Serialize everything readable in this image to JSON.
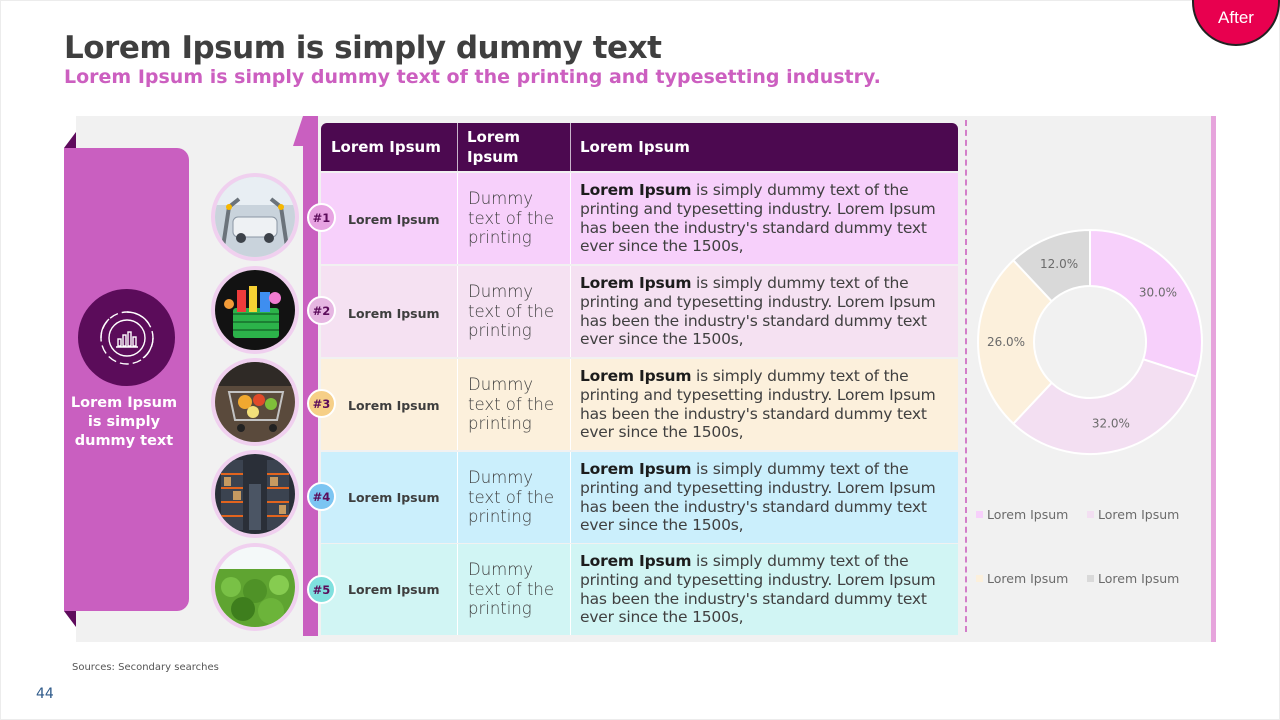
{
  "badge": {
    "label": "After"
  },
  "header": {
    "title": "Lorem Ipsum is simply dummy text",
    "subtitle": "Lorem Ipsum is simply dummy text of the printing and typesetting industry."
  },
  "left_panel": {
    "icon": "chart-cycle-icon",
    "label": "Lorem Ipsum is simply dummy text"
  },
  "table": {
    "headers": [
      "Lorem Ipsum",
      "Lorem Ipsum",
      "Lorem Ipsum"
    ],
    "rows": [
      {
        "number": "#1",
        "label": "Lorem Ipsum",
        "photo": "robot-assembly-line-photo",
        "color": "#f7d0fb",
        "badge_color": "#e7a3e2",
        "col2": "Dummy text of the printing",
        "col3_bold": "Lorem Ipsum",
        "col3_rest": " is simply dummy text of the printing and typesetting industry. Lorem Ipsum has been the industry's standard dummy text ever since the 1500s,"
      },
      {
        "number": "#2",
        "label": "Lorem Ipsum",
        "photo": "shopping-basket-photo",
        "color": "#f5e1f2",
        "badge_color": "#e6b6e2",
        "col2": "Dummy text of the printing",
        "col3_bold": "Lorem Ipsum",
        "col3_rest": " is simply dummy text of the printing and typesetting industry. Lorem Ipsum has been the industry's standard dummy text ever since the 1500s,"
      },
      {
        "number": "#3",
        "label": "Lorem Ipsum",
        "photo": "grocery-cart-photo",
        "color": "#fcf0dc",
        "badge_color": "#f6cf87",
        "col2": "Dummy text of the printing",
        "col3_bold": "Lorem Ipsum",
        "col3_rest": " is simply dummy text of the printing and typesetting industry. Lorem Ipsum has been the industry's standard dummy text ever since the 1500s,"
      },
      {
        "number": "#4",
        "label": "Lorem Ipsum",
        "photo": "warehouse-shelves-photo",
        "color": "#cbeffc",
        "badge_color": "#7cc5f2",
        "col2": "Dummy text of the printing",
        "col3_bold": "Lorem Ipsum",
        "col3_rest": " is simply dummy text of the printing and typesetting industry. Lorem Ipsum has been the industry's standard dummy text ever since the 1500s,"
      },
      {
        "number": "#5",
        "label": "Lorem Ipsum",
        "photo": "green-field-photo",
        "color": "#d1f5f4",
        "badge_color": "#7fe0de",
        "col2": "Dummy text of the printing",
        "col3_bold": "Lorem Ipsum",
        "col3_rest": " is simply dummy text of the printing and typesetting industry. Lorem Ipsum has been the industry's standard dummy text ever since the 1500s,"
      }
    ]
  },
  "chart_data": {
    "type": "pie",
    "donut": true,
    "categories": [
      "Lorem Ipsum",
      "Lorem Ipsum",
      "Lorem Ipsum",
      "Lorem Ipsum"
    ],
    "values": [
      30.0,
      32.0,
      26.0,
      12.0
    ],
    "value_labels": [
      "30.0%",
      "32.0%",
      "26.0%",
      "12.0%"
    ],
    "colors": [
      "#f7d0fb",
      "#f3dff2",
      "#fcf0dc",
      "#d9d9d9"
    ],
    "legend": [
      "Lorem Ipsum",
      "Lorem Ipsum",
      "Lorem Ipsum",
      "Lorem Ipsum"
    ],
    "legend_placement": "bottom"
  },
  "footer": {
    "sources": "Sources: Secondary searches",
    "page_number": "44"
  }
}
